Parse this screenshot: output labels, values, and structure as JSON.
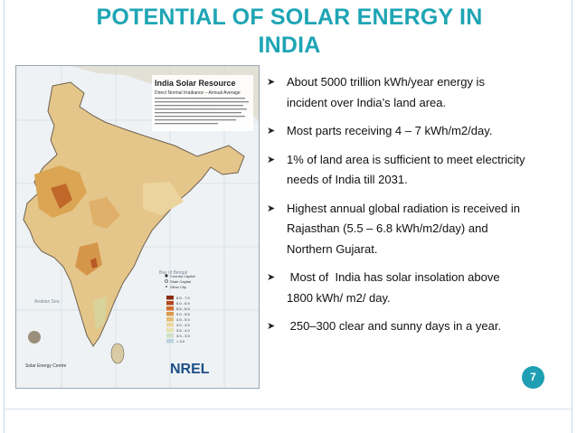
{
  "slide": {
    "title_line1": "POTENTIAL OF SOLAR ENERGY IN",
    "title_line2": "INDIA",
    "page_number": "7",
    "bullets": [
      {
        "line1": "About 5000 trillion kWh/year energy is",
        "line2": "incident over India’s land area.",
        "line3": ""
      },
      {
        "line1": "Most parts receiving 4 – 7 kWh/m2/day.",
        "line2": "",
        "line3": ""
      },
      {
        "line1": "1% of land area is sufficient to meet electricity",
        "line2": "needs of India till 2031.",
        "line3": ""
      },
      {
        "line1": "Highest annual global radiation is received in",
        "line2": "Rajasthan (5.5 – 6.8 kWh/m2/day) and",
        "line3": "Northern Gujarat."
      },
      {
        "line1": " Most of  India has solar insolation above",
        "line2": "1800 kWh/ m2/ day.",
        "line3": ""
      },
      {
        "line1": " 250–300 clear and sunny days in a year.",
        "line2": "",
        "line3": ""
      }
    ],
    "colors": {
      "title": "#1ea5b4",
      "badge": "#1e9fb3"
    }
  },
  "map": {
    "title": "India Solar Resource",
    "subtitle": "Direct Normal Irradiance – Annual Average",
    "legend_items": [
      "Country Capital",
      "State Capital",
      "Other City"
    ],
    "legend_ranges": [
      "6.5 - 7.0",
      "6.0 - 6.5",
      "5.5 - 6.0",
      "5.0 - 5.5",
      "4.5 - 5.0",
      "4.0 - 4.5",
      "3.5 - 4.0",
      "3.0 - 3.5",
      "< 3.0"
    ],
    "logo": "NREL",
    "lower_left_label": "Solar Energy Centre",
    "sea_labels": [
      "Arabian Sea",
      "Bay of Bengal"
    ]
  }
}
